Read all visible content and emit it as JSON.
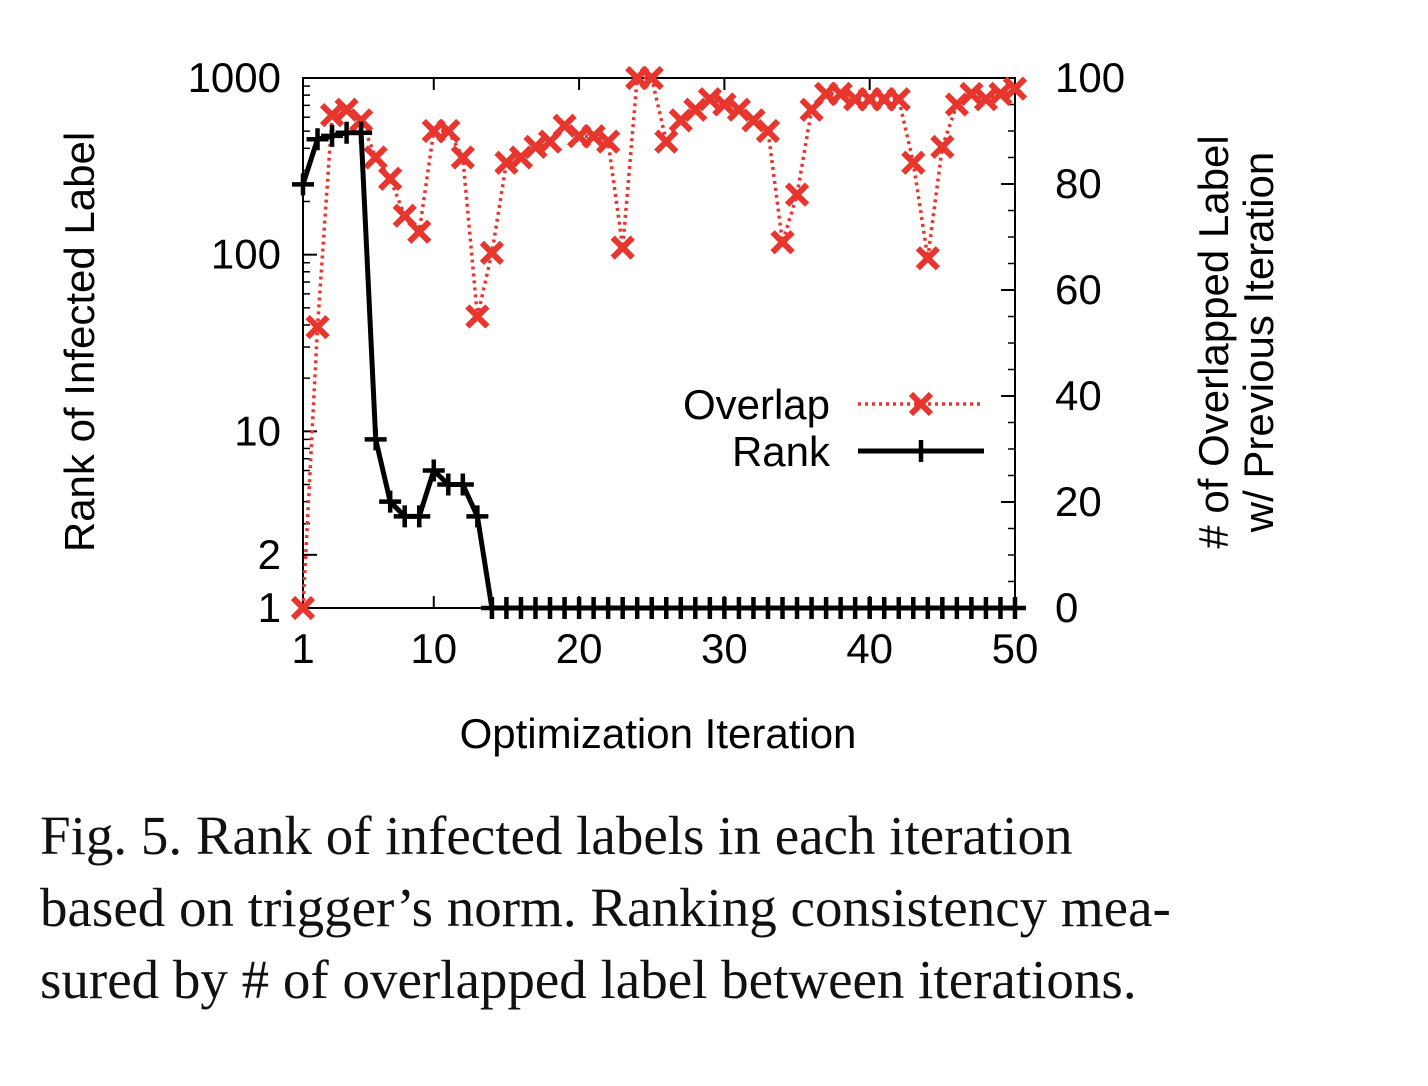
{
  "chart_data": {
    "type": "line",
    "xlabel": "Optimization Iteration",
    "ylabel_left": "Rank of Infected Label",
    "ylabel_right": [
      "# of Overlapped Label",
      "w/ Previous Iteration"
    ],
    "x_ticks": [
      1,
      10,
      20,
      30,
      40,
      50
    ],
    "x_range": [
      1,
      50
    ],
    "y_left_scale": "log",
    "y_left_ticks": [
      1,
      2,
      10,
      100,
      1000
    ],
    "y_left_range": [
      1,
      1000
    ],
    "y_right_ticks": [
      0,
      20,
      40,
      60,
      80,
      100
    ],
    "y_right_range": [
      0,
      100
    ],
    "legend_position": "center-right",
    "series": [
      {
        "name": "Overlap",
        "axis": "right",
        "color": "#e8352e",
        "line_style": "dotted",
        "marker": "x",
        "x": [
          1,
          2,
          3,
          4,
          5,
          6,
          7,
          8,
          9,
          10,
          11,
          12,
          13,
          14,
          15,
          16,
          17,
          18,
          19,
          20,
          21,
          22,
          23,
          24,
          25,
          26,
          27,
          28,
          29,
          30,
          31,
          32,
          33,
          34,
          35,
          36,
          37,
          38,
          39,
          40,
          41,
          42,
          43,
          44,
          45,
          46,
          47,
          48,
          49,
          50
        ],
        "y": [
          0,
          53,
          93,
          94,
          92,
          85,
          81,
          74,
          71,
          90,
          90,
          85,
          55,
          67,
          84,
          85,
          87,
          88,
          91,
          89,
          89,
          88,
          68,
          100,
          100,
          88,
          92,
          94,
          96,
          95,
          94,
          92,
          90,
          69,
          78,
          94,
          97,
          97,
          96,
          96,
          96,
          96,
          84,
          66,
          87,
          95,
          97,
          96,
          97,
          98
        ]
      },
      {
        "name": "Rank",
        "axis": "left",
        "color": "#000000",
        "line_style": "solid",
        "marker": "+",
        "x": [
          1,
          2,
          3,
          4,
          5,
          6,
          7,
          8,
          9,
          10,
          11,
          12,
          13,
          14,
          15,
          16,
          17,
          18,
          19,
          20,
          21,
          22,
          23,
          24,
          25,
          26,
          27,
          28,
          29,
          30,
          31,
          32,
          33,
          34,
          35,
          36,
          37,
          38,
          39,
          40,
          41,
          42,
          43,
          44,
          45,
          46,
          47,
          48,
          49,
          50
        ],
        "y": [
          250,
          450,
          470,
          490,
          490,
          9,
          4,
          3.3,
          3.3,
          6,
          5,
          5,
          3.3,
          1,
          1,
          1,
          1,
          1,
          1,
          1,
          1,
          1,
          1,
          1,
          1,
          1,
          1,
          1,
          1,
          1,
          1,
          1,
          1,
          1,
          1,
          1,
          1,
          1,
          1,
          1,
          1,
          1,
          1,
          1,
          1,
          1,
          1,
          1,
          1,
          1
        ]
      }
    ]
  },
  "caption": {
    "text": "Fig. 5.  Rank of infected labels in each iteration based on trigger’s norm. Ranking consistency measured by # of overlapped label between iterations.",
    "lines": [
      "Fig. 5.  Rank of infected labels in each iteration",
      "based on trigger’s norm. Ranking consistency mea-",
      "sured by # of overlapped label between iterations."
    ]
  }
}
